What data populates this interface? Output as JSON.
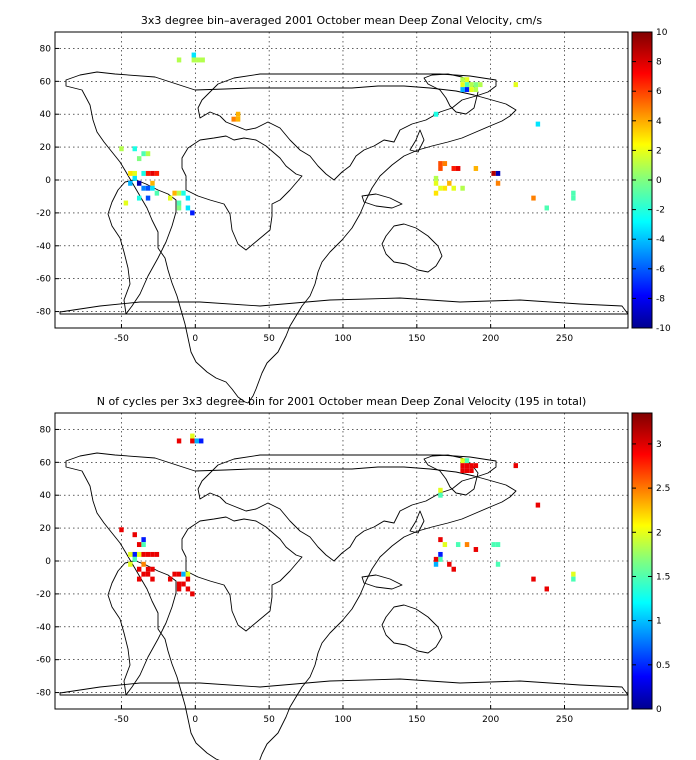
{
  "colors": {
    "background": "#ffffff",
    "axis": "#000000",
    "colormap": "jet"
  },
  "chart_data": [
    {
      "type": "heatmap",
      "title": "3x3 degree bin–averaged 2001 October mean Deep Zonal Velocity, cm/s",
      "xlabel": "",
      "ylabel": "",
      "xlim": [
        -95,
        293
      ],
      "ylim": [
        -90,
        90
      ],
      "xticks": [
        -50,
        0,
        50,
        100,
        150,
        200,
        250
      ],
      "yticks": [
        80,
        60,
        40,
        20,
        0,
        -20,
        -40,
        -60,
        -80
      ],
      "grid": true,
      "colorbar": {
        "min": -10,
        "max": 10,
        "ticks": [
          10,
          8,
          6,
          4,
          2,
          0,
          -2,
          -4,
          -6,
          -8,
          -10
        ]
      },
      "cells": [
        [
          -1,
          76,
          -3
        ],
        [
          -1,
          73,
          1
        ],
        [
          2,
          73,
          1
        ],
        [
          5,
          73,
          1
        ],
        [
          -11,
          73,
          1
        ],
        [
          29,
          40,
          4
        ],
        [
          26,
          37,
          5
        ],
        [
          29,
          37,
          4
        ],
        [
          -50,
          19,
          1
        ],
        [
          -41,
          19,
          -2
        ],
        [
          -35,
          16,
          -1
        ],
        [
          -32,
          16,
          1
        ],
        [
          -38,
          13,
          0
        ],
        [
          -44,
          4,
          3
        ],
        [
          -41,
          4,
          2
        ],
        [
          -35,
          4,
          -2
        ],
        [
          -32,
          4,
          7
        ],
        [
          -29,
          4,
          8
        ],
        [
          -26,
          4,
          7
        ],
        [
          -41,
          1,
          -3
        ],
        [
          -44,
          -2,
          -4
        ],
        [
          -38,
          -2,
          -9
        ],
        [
          -29,
          -2,
          4
        ],
        [
          -35,
          -5,
          -5
        ],
        [
          -32,
          -5,
          -6
        ],
        [
          -29,
          -5,
          -3
        ],
        [
          -26,
          -8,
          -1
        ],
        [
          -38,
          -11,
          -2
        ],
        [
          -32,
          -11,
          -6
        ],
        [
          -14,
          -8,
          4
        ],
        [
          -11,
          -8,
          1
        ],
        [
          -8,
          -8,
          -2
        ],
        [
          -17,
          -11,
          2
        ],
        [
          -11,
          -14,
          -1
        ],
        [
          -5,
          -11,
          -3
        ],
        [
          -11,
          -17,
          0
        ],
        [
          -5,
          -17,
          -3
        ],
        [
          -2,
          -20,
          -7
        ],
        [
          -47,
          -14,
          2
        ],
        [
          163,
          40,
          -2
        ],
        [
          166,
          10,
          6
        ],
        [
          169,
          10,
          5
        ],
        [
          175,
          7,
          7
        ],
        [
          178,
          7,
          8
        ],
        [
          166,
          7,
          6
        ],
        [
          163,
          1,
          1
        ],
        [
          163,
          -2,
          2
        ],
        [
          172,
          -2,
          4
        ],
        [
          166,
          -5,
          2
        ],
        [
          169,
          -5,
          3
        ],
        [
          175,
          -5,
          2
        ],
        [
          181,
          -5,
          1
        ],
        [
          190,
          7,
          4
        ],
        [
          202,
          4,
          9
        ],
        [
          205,
          4,
          -9
        ],
        [
          205,
          -2,
          5
        ],
        [
          163,
          -8,
          3
        ],
        [
          181,
          61,
          1
        ],
        [
          184,
          61,
          2
        ],
        [
          181,
          58,
          2
        ],
        [
          184,
          58,
          -1
        ],
        [
          187,
          58,
          1
        ],
        [
          190,
          58,
          0
        ],
        [
          193,
          58,
          1
        ],
        [
          181,
          55,
          -4
        ],
        [
          184,
          55,
          -7
        ],
        [
          187,
          55,
          2
        ],
        [
          190,
          55,
          1
        ],
        [
          217,
          58,
          2
        ],
        [
          232,
          34,
          -3
        ],
        [
          229,
          -11,
          5
        ],
        [
          238,
          -17,
          -1
        ],
        [
          256,
          -8,
          -1
        ],
        [
          256,
          -11,
          -1
        ]
      ]
    },
    {
      "type": "heatmap",
      "title": "N of cycles per 3x3 degree bin for 2001 October mean Deep Zonal Velocity (195 in total)",
      "xlabel": "",
      "ylabel": "",
      "xlim": [
        -95,
        293
      ],
      "ylim": [
        -90,
        90
      ],
      "xticks": [
        -50,
        0,
        50,
        100,
        150,
        200,
        250
      ],
      "yticks": [
        80,
        60,
        40,
        20,
        0,
        -20,
        -40,
        -60,
        -80
      ],
      "grid": true,
      "colorbar": {
        "min": 0,
        "max": 3.35,
        "ticks": [
          3,
          2.5,
          2,
          1.5,
          1,
          0.5,
          0
        ]
      },
      "cells": [
        [
          -11,
          73,
          3
        ],
        [
          -2,
          76,
          2
        ],
        [
          -2,
          73,
          3
        ],
        [
          1,
          73,
          1
        ],
        [
          4,
          73,
          0.5
        ],
        [
          -50,
          19,
          3
        ],
        [
          -41,
          16,
          3
        ],
        [
          -35,
          13,
          0.5
        ],
        [
          -38,
          10,
          3
        ],
        [
          -35,
          10,
          1.5
        ],
        [
          -38,
          4,
          2
        ],
        [
          -35,
          4,
          3
        ],
        [
          -32,
          4,
          3
        ],
        [
          -29,
          4,
          3
        ],
        [
          -26,
          4,
          3
        ],
        [
          -41,
          4,
          0.5
        ],
        [
          -44,
          4,
          2
        ],
        [
          -41,
          1,
          1.5
        ],
        [
          -44,
          -2,
          2
        ],
        [
          -35,
          -2,
          2.5
        ],
        [
          -38,
          -5,
          3
        ],
        [
          -32,
          -5,
          3
        ],
        [
          -29,
          -5,
          3
        ],
        [
          -35,
          -8,
          3
        ],
        [
          -32,
          -8,
          3
        ],
        [
          -38,
          -11,
          3
        ],
        [
          -29,
          -11,
          3
        ],
        [
          -14,
          -8,
          3
        ],
        [
          -11,
          -8,
          3
        ],
        [
          -8,
          -8,
          1
        ],
        [
          -5,
          -8,
          2
        ],
        [
          -5,
          -11,
          3
        ],
        [
          -11,
          -14,
          3
        ],
        [
          -8,
          -14,
          3
        ],
        [
          -11,
          -17,
          3
        ],
        [
          -5,
          -17,
          3
        ],
        [
          -2,
          -20,
          3
        ],
        [
          -17,
          -11,
          3
        ],
        [
          166,
          43,
          2
        ],
        [
          166,
          40,
          1.5
        ],
        [
          166,
          13,
          3
        ],
        [
          169,
          10,
          2
        ],
        [
          178,
          10,
          1.5
        ],
        [
          184,
          10,
          2.5
        ],
        [
          190,
          7,
          3
        ],
        [
          166,
          4,
          0.5
        ],
        [
          166,
          1,
          1.5
        ],
        [
          163,
          -2,
          1
        ],
        [
          172,
          -2,
          3
        ],
        [
          175,
          -5,
          3
        ],
        [
          163,
          1,
          3
        ],
        [
          202,
          10,
          1.5
        ],
        [
          205,
          10,
          1.5
        ],
        [
          205,
          -2,
          1.5
        ],
        [
          181,
          61,
          2
        ],
        [
          184,
          61,
          1.5
        ],
        [
          181,
          58,
          3
        ],
        [
          184,
          58,
          3
        ],
        [
          187,
          58,
          3
        ],
        [
          190,
          58,
          3
        ],
        [
          181,
          55,
          3
        ],
        [
          184,
          55,
          3
        ],
        [
          187,
          55,
          3
        ],
        [
          217,
          58,
          3
        ],
        [
          232,
          34,
          3
        ],
        [
          229,
          -11,
          3
        ],
        [
          238,
          -17,
          3
        ],
        [
          256,
          -8,
          2
        ],
        [
          256,
          -11,
          1.5
        ]
      ]
    }
  ]
}
